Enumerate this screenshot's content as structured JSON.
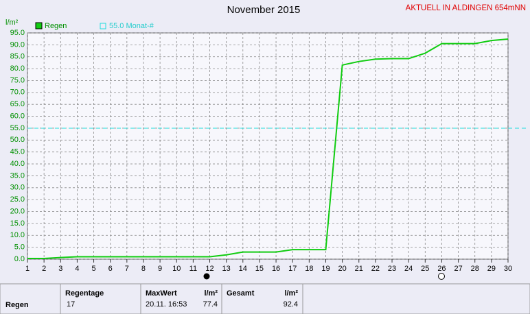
{
  "chart_data": {
    "type": "line",
    "title": "November 2015",
    "corner_label": "AKTUELL IN ALDINGEN 654mNN",
    "y_unit": "l/m²",
    "x": [
      1,
      2,
      3,
      4,
      5,
      6,
      7,
      8,
      9,
      10,
      11,
      12,
      13,
      14,
      15,
      16,
      17,
      18,
      19,
      20,
      21,
      22,
      23,
      24,
      25,
      26,
      27,
      28,
      29,
      30
    ],
    "xlim": [
      1,
      30
    ],
    "xticks": [
      1,
      2,
      3,
      4,
      5,
      6,
      7,
      8,
      9,
      10,
      11,
      12,
      13,
      14,
      15,
      16,
      17,
      18,
      19,
      20,
      21,
      22,
      23,
      24,
      25,
      26,
      27,
      28,
      29,
      30
    ],
    "ylim": [
      0,
      95
    ],
    "yticks": [
      {
        "value": 0,
        "label": "0.0"
      },
      {
        "value": 5,
        "label": "5.0"
      },
      {
        "value": 10,
        "label": "10.0"
      },
      {
        "value": 15,
        "label": "15.0"
      },
      {
        "value": 20,
        "label": "20.0"
      },
      {
        "value": 25,
        "label": "25.0"
      },
      {
        "value": 30,
        "label": "30.0"
      },
      {
        "value": 35,
        "label": "35.0"
      },
      {
        "value": 40,
        "label": "40.0"
      },
      {
        "value": 45,
        "label": "45.0"
      },
      {
        "value": 50,
        "label": "50.0"
      },
      {
        "value": 55,
        "label": "55.0"
      },
      {
        "value": 60,
        "label": "60.0"
      },
      {
        "value": 65,
        "label": "65.0"
      },
      {
        "value": 70,
        "label": "70.0"
      },
      {
        "value": 75,
        "label": "75.0"
      },
      {
        "value": 80,
        "label": "80.0"
      },
      {
        "value": 85,
        "label": "85.0"
      },
      {
        "value": 90,
        "label": "90.0"
      },
      {
        "value": 95,
        "label": "95.0"
      }
    ],
    "grid": true,
    "series": [
      {
        "name": "Regen",
        "color": "#11cc11",
        "values": [
          0.3,
          0.3,
          0.7,
          1.0,
          1.0,
          1.0,
          1.0,
          1.0,
          1.0,
          1.0,
          1.0,
          1.0,
          1.8,
          3.0,
          3.0,
          3.0,
          4.0,
          4.0,
          4.0,
          81.5,
          83.0,
          84.0,
          84.2,
          84.2,
          86.5,
          90.5,
          90.5,
          90.5,
          91.8,
          92.4
        ]
      }
    ],
    "reference": {
      "label": "55.0 Monat-#",
      "value": 55,
      "color": "#22dddd"
    }
  },
  "summary": {
    "row_label": "Regen",
    "columns": [
      {
        "header": "Regentage",
        "value": "17"
      },
      {
        "header": "MaxWert",
        "unit": "l/m²",
        "date": "20.11. 16:53",
        "value": "77.4"
      },
      {
        "header": "Gesamt",
        "unit": "l/m²",
        "value": "92.4"
      }
    ]
  }
}
